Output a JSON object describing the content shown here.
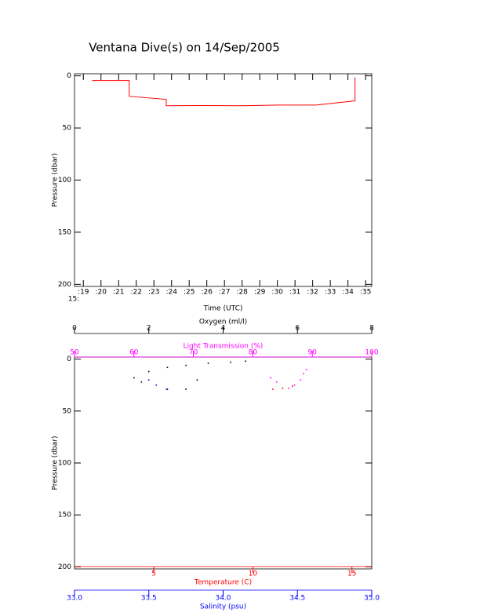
{
  "chart_data": [
    {
      "type": "line",
      "title": "Ventana Dive(s) on 14/Sep/2005",
      "xlabel": "Time (UTC)",
      "x_hour_label": "15:",
      "ylabel": "Pressure (dbar)",
      "xlim": [
        18.5,
        35.35
      ],
      "xticks": [
        {
          "value": 19,
          "label": ":19"
        },
        {
          "value": 20,
          "label": ":20"
        },
        {
          "value": 21,
          "label": ":21"
        },
        {
          "value": 22,
          "label": ":22"
        },
        {
          "value": 23,
          "label": ":23"
        },
        {
          "value": 24,
          "label": ":24"
        },
        {
          "value": 25,
          "label": ":25"
        },
        {
          "value": 26,
          "label": ":26"
        },
        {
          "value": 27,
          "label": ":27"
        },
        {
          "value": 28,
          "label": ":28"
        },
        {
          "value": 29,
          "label": ":29"
        },
        {
          "value": 30,
          "label": ":30"
        },
        {
          "value": 31,
          "label": ":31"
        },
        {
          "value": 32,
          "label": ":32"
        },
        {
          "value": 33,
          "label": ":33"
        },
        {
          "value": 34,
          "label": ":34"
        },
        {
          "value": 35,
          "label": ":35"
        }
      ],
      "ylim": [
        -2,
        202
      ],
      "yticks": [
        0,
        50,
        100,
        150,
        200
      ],
      "y_inverted": true,
      "x": [
        19.5,
        21.6,
        21.6,
        23.7,
        23.7,
        25.9,
        28.0,
        30.1,
        32.2,
        34.4,
        34.4
      ],
      "series": [
        {
          "color": "#ff0000",
          "values": [
            4.5,
            4.5,
            19.6,
            22.6,
            28.7,
            28.5,
            28.7,
            28,
            28,
            24,
            1.5
          ]
        }
      ]
    },
    {
      "type": "scatter",
      "ylabel": "Pressure (dbar)",
      "ylim": [
        -2,
        202
      ],
      "yticks": [
        0,
        50,
        100,
        150,
        200
      ],
      "y_inverted": true,
      "x_axes": [
        {
          "label": "Oxygen (ml/l)",
          "color": "#000000",
          "position": "top-outer",
          "xlim": [
            0,
            8
          ],
          "xticks": [
            0,
            2,
            4,
            6,
            8
          ],
          "x": [
            1.6,
            2.0,
            2.5,
            3.0,
            3.6,
            4.2,
            4.6,
            2.5,
            3.0,
            1.8,
            3.3
          ],
          "y": [
            18,
            12,
            8,
            6,
            4,
            3,
            2,
            29,
            29,
            22,
            20
          ]
        },
        {
          "label": "Light Transmission (%)",
          "color": "#ff00ff",
          "position": "top",
          "xlim": [
            50,
            100
          ],
          "xticks": [
            50,
            60,
            70,
            80,
            90,
            100
          ],
          "x": [
            83,
            84,
            85,
            86,
            87,
            88,
            88.5,
            89
          ],
          "y": [
            18,
            22,
            28,
            28,
            25,
            20,
            14,
            10
          ]
        },
        {
          "label": "Temperature (C)",
          "color": "#ff0000",
          "position": "bottom",
          "xlim": [
            1,
            16
          ],
          "xticks": [
            5,
            10,
            15
          ],
          "x": [
            11,
            11.5,
            12
          ],
          "y": [
            29,
            28,
            26
          ]
        },
        {
          "label": "Salinity (psu)",
          "color": "#0000ff",
          "position": "bottom-outer",
          "xlim": [
            33,
            35
          ],
          "xticks": [
            {
              "value": 33,
              "label": "33.0"
            },
            {
              "value": 33.5,
              "label": "33.5"
            },
            {
              "value": 34,
              "label": "34.0"
            },
            {
              "value": 34.5,
              "label": "34.5"
            },
            {
              "value": 35,
              "label": "35.0"
            }
          ],
          "x": [
            33.62,
            33.55,
            33.5
          ],
          "y": [
            29,
            25,
            20
          ]
        }
      ]
    }
  ]
}
